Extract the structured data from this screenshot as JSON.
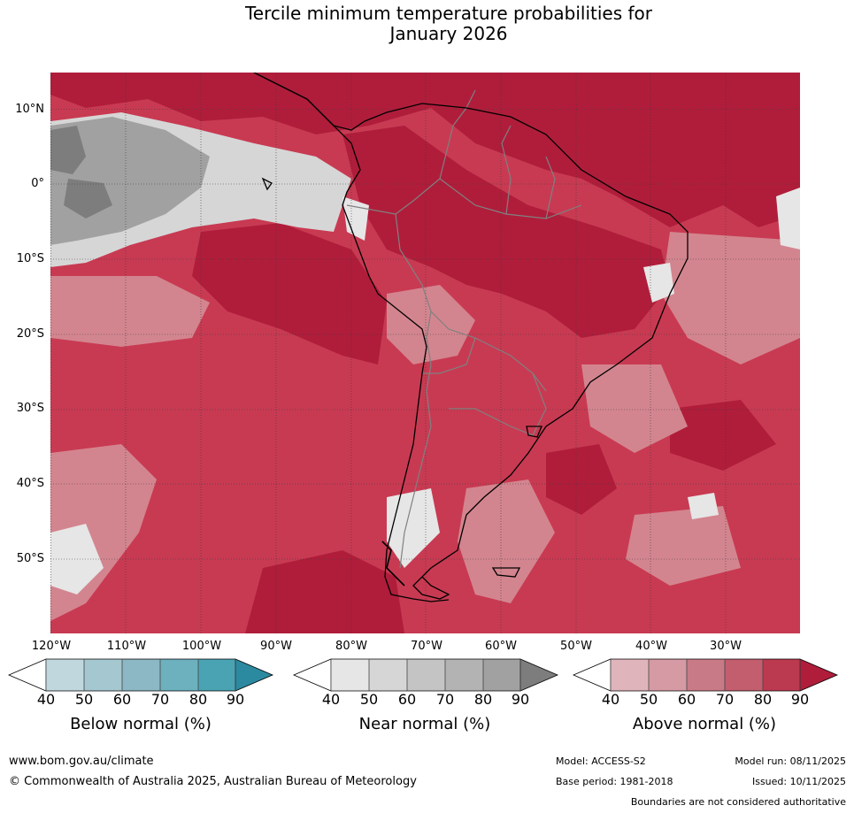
{
  "title": {
    "line1": "Tercile minimum temperature probabilities for",
    "line2": "January 2026"
  },
  "map": {
    "latitude_labels": [
      "10°N",
      "0°",
      "10°S",
      "20°S",
      "30°S",
      "40°S",
      "50°S"
    ],
    "longitude_labels": [
      "120°W",
      "110°W",
      "100°W",
      "90°W",
      "80°W",
      "70°W",
      "60°W",
      "50°W",
      "40°W",
      "30°W"
    ],
    "latitude_values": [
      10,
      0,
      -10,
      -20,
      -30,
      -40,
      -50
    ],
    "longitude_values": [
      -120,
      -110,
      -100,
      -90,
      -80,
      -70,
      -60,
      -50,
      -40,
      -30
    ],
    "dominant_category": "Above normal",
    "colors": {
      "above_base": "#c83a52",
      "coastline": "#000000",
      "borders": "#808080",
      "gridlines": "#3a3a3a"
    }
  },
  "legends": [
    {
      "title": "Below normal (%)",
      "ticks": [
        "40",
        "50",
        "60",
        "70",
        "80",
        "90"
      ],
      "colors": [
        "#ffffff",
        "#c0d7de",
        "#a5c7cf",
        "#8cb7c4",
        "#6db0be",
        "#4aa3b3",
        "#2b8a9f"
      ]
    },
    {
      "title": "Near normal (%)",
      "ticks": [
        "40",
        "50",
        "60",
        "70",
        "80",
        "90"
      ],
      "colors": [
        "#ffffff",
        "#e6e6e6",
        "#d6d6d6",
        "#c4c4c4",
        "#b3b3b3",
        "#a1a1a1",
        "#7d7d7d"
      ]
    },
    {
      "title": "Above normal (%)",
      "ticks": [
        "40",
        "50",
        "60",
        "70",
        "80",
        "90"
      ],
      "colors": [
        "#ffffff",
        "#e0b4bb",
        "#d59aa3",
        "#c97a87",
        "#c35e6e",
        "#bb3a50",
        "#b01d3b"
      ]
    }
  ],
  "footer": {
    "website": "www.bom.gov.au/climate",
    "copyright": "© Commonwealth of Australia 2025, Australian Bureau of Meteorology",
    "model": "Model: ACCESS-S2",
    "model_run": "Model run: 08/11/2025",
    "base_period": "Base period: 1981-2018",
    "issued": "Issued: 10/11/2025",
    "disclaimer": "Boundaries are not considered authoritative"
  }
}
